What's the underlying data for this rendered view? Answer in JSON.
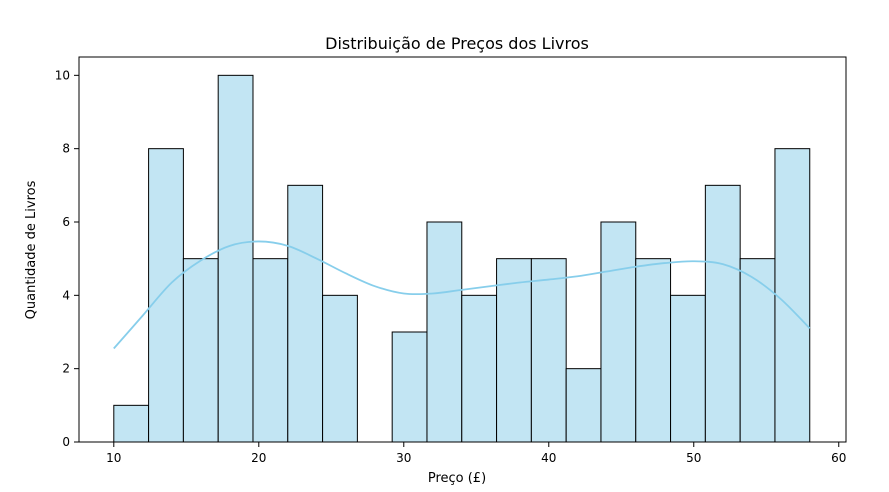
{
  "chart_data": {
    "type": "bar",
    "title": "Distribuição de Preços dos Livros",
    "xlabel": "Preço (£)",
    "ylabel": "Quantidade de Livros",
    "xlim": [
      7.6,
      60.5
    ],
    "ylim": [
      0,
      10.5
    ],
    "x_ticks": [
      10,
      20,
      30,
      40,
      50,
      60
    ],
    "y_ticks": [
      0,
      2,
      4,
      6,
      8,
      10
    ],
    "grid": false,
    "bar_color": "#c2e5f3",
    "bar_edge_color": "#000000",
    "kde_color": "#87ceeb",
    "bins": [
      {
        "start": 10.0,
        "end": 12.4,
        "count": 1
      },
      {
        "start": 12.4,
        "end": 14.8,
        "count": 8
      },
      {
        "start": 14.8,
        "end": 17.2,
        "count": 5
      },
      {
        "start": 17.2,
        "end": 19.6,
        "count": 10
      },
      {
        "start": 19.6,
        "end": 22.0,
        "count": 5
      },
      {
        "start": 22.0,
        "end": 24.4,
        "count": 7
      },
      {
        "start": 24.4,
        "end": 26.8,
        "count": 4
      },
      {
        "start": 26.8,
        "end": 29.2,
        "count": 0
      },
      {
        "start": 29.2,
        "end": 31.6,
        "count": 3
      },
      {
        "start": 31.6,
        "end": 34.0,
        "count": 6
      },
      {
        "start": 34.0,
        "end": 36.4,
        "count": 4
      },
      {
        "start": 36.4,
        "end": 38.8,
        "count": 5
      },
      {
        "start": 38.8,
        "end": 41.2,
        "count": 5
      },
      {
        "start": 41.2,
        "end": 43.6,
        "count": 2
      },
      {
        "start": 43.6,
        "end": 46.0,
        "count": 6
      },
      {
        "start": 46.0,
        "end": 48.4,
        "count": 5
      },
      {
        "start": 48.4,
        "end": 50.8,
        "count": 4
      },
      {
        "start": 50.8,
        "end": 53.2,
        "count": 7
      },
      {
        "start": 53.2,
        "end": 55.6,
        "count": 5
      },
      {
        "start": 55.6,
        "end": 58.0,
        "count": 8
      }
    ],
    "kde": {
      "x": [
        10,
        12,
        14,
        16,
        18,
        20,
        22,
        24,
        26,
        28,
        30,
        32,
        34,
        36,
        38,
        40,
        42,
        44,
        46,
        48,
        50,
        52,
        54,
        56,
        58
      ],
      "y": [
        2.55,
        3.45,
        4.35,
        4.95,
        5.35,
        5.47,
        5.35,
        5.0,
        4.6,
        4.25,
        4.05,
        4.05,
        4.15,
        4.25,
        4.35,
        4.43,
        4.52,
        4.65,
        4.78,
        4.88,
        4.93,
        4.85,
        4.5,
        3.9,
        3.1
      ]
    }
  }
}
